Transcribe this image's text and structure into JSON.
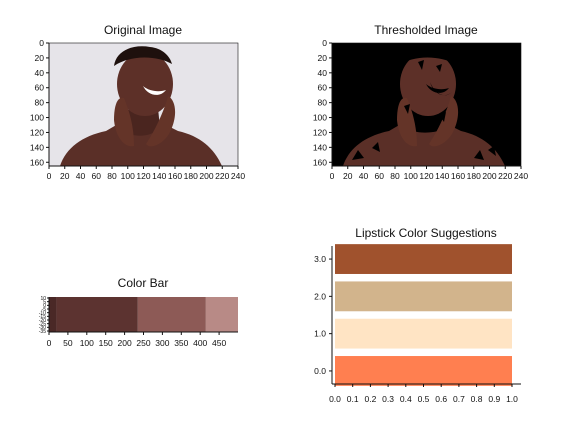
{
  "chart_data": [
    {
      "type": "image",
      "title": "Original Image",
      "xlim": [
        0,
        240
      ],
      "ylim": [
        0,
        165
      ],
      "xticks": [
        "0",
        "20",
        "40",
        "60",
        "80",
        "100",
        "120",
        "140",
        "160",
        "180",
        "200",
        "220",
        "240"
      ],
      "yticks": [
        "0",
        "20",
        "40",
        "60",
        "80",
        "100",
        "120",
        "140",
        "160"
      ]
    },
    {
      "type": "image",
      "title": "Thresholded Image",
      "xlim": [
        0,
        240
      ],
      "ylim": [
        0,
        165
      ],
      "xticks": [
        "0",
        "20",
        "40",
        "60",
        "80",
        "100",
        "120",
        "140",
        "160",
        "180",
        "200",
        "220",
        "240"
      ],
      "yticks": [
        "0",
        "20",
        "40",
        "60",
        "80",
        "100",
        "120",
        "140",
        "160"
      ]
    },
    {
      "type": "bar",
      "title": "Color Bar",
      "xlim": [
        0,
        500
      ],
      "segments": [
        {
          "start": 0,
          "end": 20,
          "color": "#4a2826"
        },
        {
          "start": 20,
          "end": 235,
          "color": "#5c3330"
        },
        {
          "start": 235,
          "end": 415,
          "color": "#8d5a56"
        },
        {
          "start": 415,
          "end": 500,
          "color": "#b88a86"
        }
      ],
      "xticks": [
        "0",
        "50",
        "100",
        "150",
        "200",
        "250",
        "300",
        "350",
        "400",
        "450"
      ],
      "yticks_compressed": [
        "10",
        "5",
        "0",
        "-5",
        "-10",
        "-15",
        "-20",
        "-25",
        "-30",
        "-35"
      ]
    },
    {
      "type": "bar",
      "orientation": "horizontal",
      "title": "Lipstick Color Suggestions",
      "categories": [
        "0.0",
        "1.0",
        "2.0",
        "3.0"
      ],
      "values": [
        1.0,
        1.0,
        1.0,
        1.0
      ],
      "colors": [
        "#ff7f50",
        "#ffe4c4",
        "#d2b48c",
        "#a0522d"
      ],
      "xlim": [
        0,
        1.0
      ],
      "xticks": [
        "0.0",
        "0.1",
        "0.2",
        "0.3",
        "0.4",
        "0.5",
        "0.6",
        "0.7",
        "0.8",
        "0.9",
        "1.0"
      ]
    }
  ]
}
